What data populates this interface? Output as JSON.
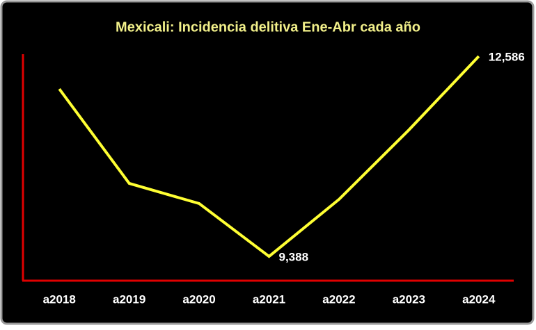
{
  "chart_data": {
    "type": "line",
    "title": "Mexicali: Incidencia delitiva Ene-Abr cada año",
    "categories": [
      "a2018",
      "a2019",
      "a2020",
      "a2021",
      "a2022",
      "a2023",
      "a2024"
    ],
    "series": [
      {
        "name": null,
        "color": "#ffff33",
        "values": [
          12064,
          10555,
          10233,
          9388,
          10299,
          11409,
          12586
        ],
        "value_labels": [
          null,
          null,
          null,
          "9,388",
          null,
          null,
          "12,586"
        ]
      }
    ],
    "ylim": [
      9000,
      12620
    ],
    "axis_color": "#e00000"
  }
}
